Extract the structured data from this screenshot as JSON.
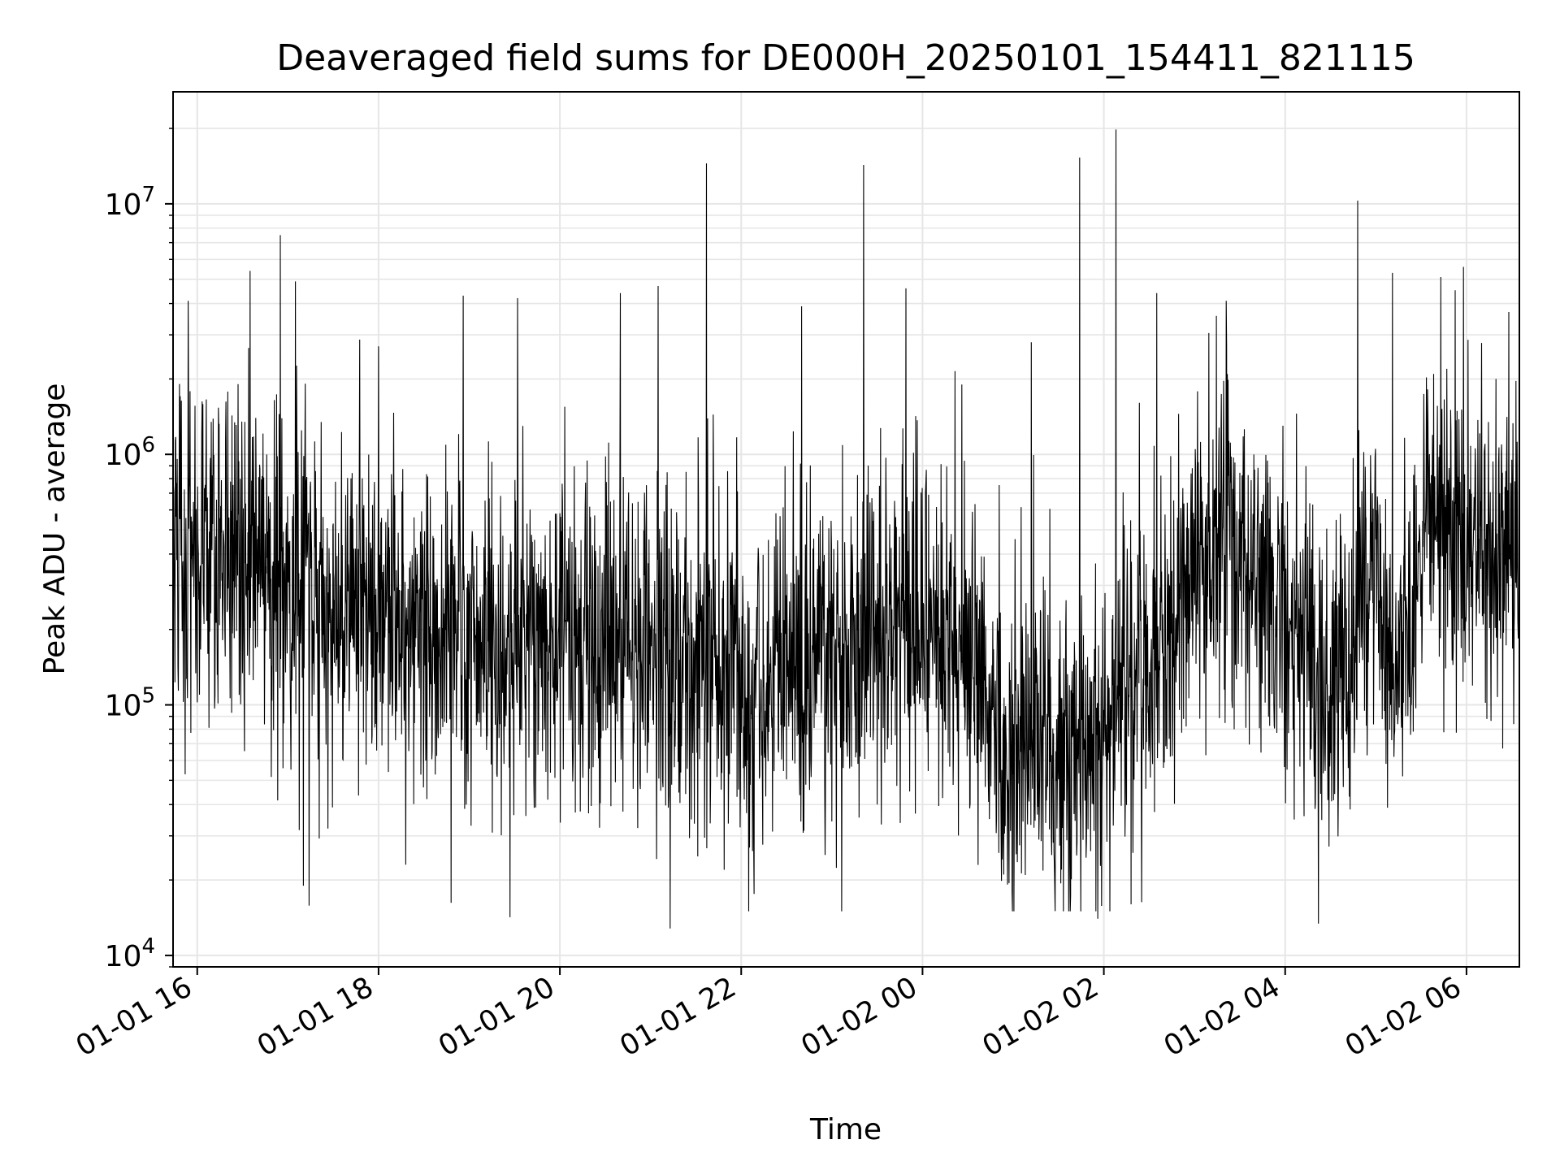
{
  "chart_data": {
    "type": "line",
    "title": "Deaveraged field sums for DE000H_20250101_154411_821115",
    "xlabel": "Time",
    "ylabel": "Peak ADU - average",
    "yscale": "log",
    "grid": true,
    "line_color": "#000000",
    "grid_color": "#e6e6e6",
    "xlim": [
      "2025-01-01 15:44",
      "2025-01-02 06:35"
    ],
    "ylim": [
      9000,
      28000000
    ],
    "x_ticks": [
      {
        "value": "2025-01-01 16:00",
        "label": "01-01 16"
      },
      {
        "value": "2025-01-01 18:00",
        "label": "01-01 18"
      },
      {
        "value": "2025-01-01 20:00",
        "label": "01-01 20"
      },
      {
        "value": "2025-01-01 22:00",
        "label": "01-01 22"
      },
      {
        "value": "2025-01-02 00:00",
        "label": "01-02 00"
      },
      {
        "value": "2025-01-02 02:00",
        "label": "01-02 02"
      },
      {
        "value": "2025-01-02 04:00",
        "label": "01-02 04"
      },
      {
        "value": "2025-01-02 06:00",
        "label": "01-02 06"
      }
    ],
    "y_ticks": [
      {
        "value": 10000,
        "base": "10",
        "exp": "4"
      },
      {
        "value": 100000,
        "base": "10",
        "exp": "5"
      },
      {
        "value": 1000000,
        "base": "10",
        "exp": "6"
      },
      {
        "value": 10000000,
        "base": "10",
        "exp": "7"
      }
    ],
    "baseline": [
      [
        "2025-01-01 15:44",
        520000
      ],
      [
        "2025-01-01 16:30",
        380000
      ],
      [
        "2025-01-01 17:30",
        230000
      ],
      [
        "2025-01-01 18:30",
        200000
      ],
      [
        "2025-01-01 19:30",
        170000
      ],
      [
        "2025-01-01 20:00",
        200000
      ],
      [
        "2025-01-01 21:00",
        170000
      ],
      [
        "2025-01-01 22:00",
        120000
      ],
      [
        "2025-01-01 23:00",
        170000
      ],
      [
        "2025-01-01 23:40",
        210000
      ],
      [
        "2025-01-02 00:20",
        170000
      ],
      [
        "2025-01-02 01:00",
        80000
      ],
      [
        "2025-01-02 01:40",
        70000
      ],
      [
        "2025-01-02 02:10",
        100000
      ],
      [
        "2025-01-02 02:40",
        160000
      ],
      [
        "2025-01-02 03:00",
        450000
      ],
      [
        "2025-01-02 03:40",
        350000
      ],
      [
        "2025-01-02 04:00",
        200000
      ],
      [
        "2025-01-02 04:30",
        100000
      ],
      [
        "2025-01-02 05:00",
        280000
      ],
      [
        "2025-01-02 05:10",
        120000
      ],
      [
        "2025-01-02 05:35",
        500000
      ],
      [
        "2025-01-02 06:35",
        420000
      ]
    ],
    "sample_interval_seconds": 15,
    "spikes": [
      [
        "2025-01-01 16:55",
        7500000
      ],
      [
        "2025-01-01 16:35",
        5400000
      ],
      [
        "2025-01-01 17:05",
        4900000
      ],
      [
        "2025-01-01 15:54",
        4100000
      ],
      [
        "2025-01-01 18:56",
        4300000
      ],
      [
        "2025-01-01 19:32",
        4200000
      ],
      [
        "2025-01-01 20:40",
        4400000
      ],
      [
        "2025-01-01 21:05",
        4700000
      ],
      [
        "2025-01-01 21:37",
        14500000
      ],
      [
        "2025-01-01 23:21",
        14300000
      ],
      [
        "2025-01-01 23:49",
        4600000
      ],
      [
        "2025-01-02 01:44",
        15300000
      ],
      [
        "2025-01-02 02:08",
        19800000
      ],
      [
        "2025-01-02 04:48",
        10300000
      ],
      [
        "2025-01-02 05:58",
        5600000
      ],
      [
        "2025-01-02 05:11",
        5300000
      ],
      [
        "2025-01-02 05:43",
        5100000
      ],
      [
        "2025-01-02 06:28",
        3700000
      ],
      [
        "2025-01-02 02:35",
        4400000
      ],
      [
        "2025-01-02 03:21",
        4100000
      ],
      [
        "2025-01-02 01:12",
        2800000
      ],
      [
        "2025-01-02 00:26",
        1900000
      ],
      [
        "2025-01-01 22:40",
        3900000
      ],
      [
        "2025-01-01 18:00",
        2700000
      ]
    ],
    "dips": [
      [
        "2025-01-01 17:14",
        15800
      ],
      [
        "2025-01-01 19:27",
        14200
      ],
      [
        "2025-01-01 21:13",
        12800
      ],
      [
        "2025-01-02 01:56",
        14000
      ],
      [
        "2025-01-02 04:22",
        13400
      ],
      [
        "2025-01-02 02:18",
        16000
      ]
    ]
  }
}
